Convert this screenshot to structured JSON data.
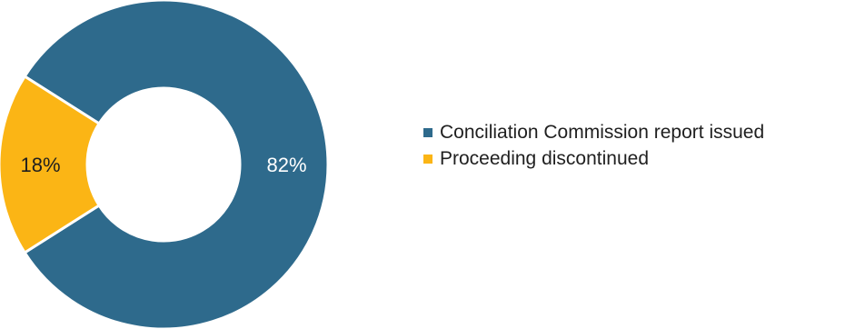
{
  "chart_data": {
    "type": "pie",
    "donut": true,
    "slices": [
      {
        "label": "Conciliation Commission report issued",
        "value": 82,
        "value_label": "82%",
        "color": "#2e6a8c"
      },
      {
        "label": "Proceeding discontinued",
        "value": 18,
        "value_label": "18%",
        "color": "#fbb515"
      }
    ],
    "legend_position": "right"
  }
}
